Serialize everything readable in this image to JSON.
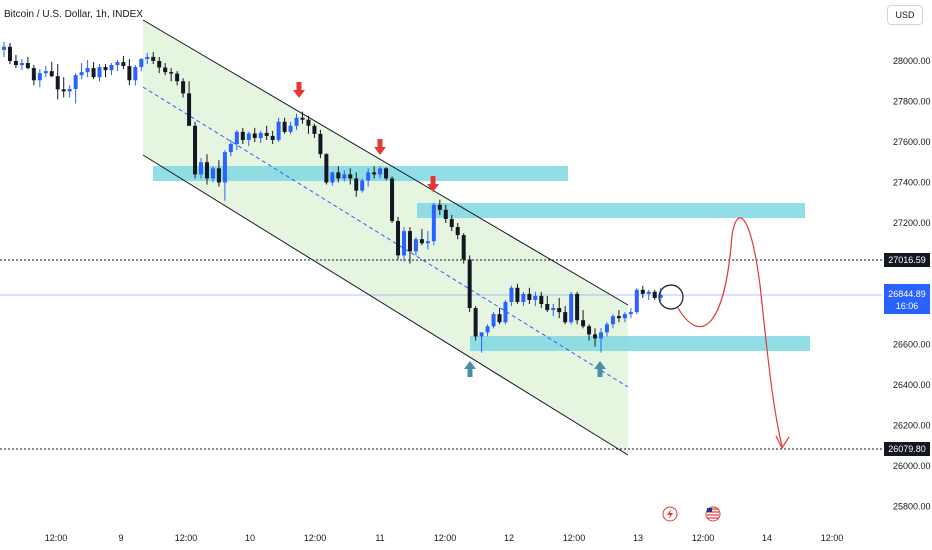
{
  "chart_title": "Bitcoin / U.S. Dollar, 1h, INDEX",
  "currency": "USD",
  "colors": {
    "up": "#2962ff",
    "down": "#131722",
    "channel_fill": "#e6f5e0",
    "zone": "#7fd8e3",
    "arrow_down": "#e53935",
    "arrow_up": "#4a90a4",
    "projection": "#e53935"
  },
  "chart_data": {
    "type": "candlestick",
    "y_ticks": [
      "28000.00",
      "27800.00",
      "27600.00",
      "27400.00",
      "27200.00",
      "27000.00",
      "26800.00",
      "26600.00",
      "26400.00",
      "26200.00",
      "26000.00",
      "25800.00"
    ],
    "x_ticks": [
      "12:00",
      "9",
      "12:00",
      "10",
      "12:00",
      "11",
      "12:00",
      "12",
      "12:00",
      "13",
      "12:00",
      "14",
      "12:00"
    ],
    "price_labels": [
      {
        "id": "level-high",
        "value": "27016.59",
        "style": "dark"
      },
      {
        "id": "current",
        "value": "26844.89",
        "sub": "16:06",
        "style": "blue"
      },
      {
        "id": "level-target",
        "value": "26079.80",
        "style": "dark"
      }
    ],
    "ohlc": [
      [
        28055,
        28095,
        28020,
        28070
      ],
      [
        28070,
        28090,
        27985,
        28000
      ],
      [
        28000,
        28030,
        27965,
        27980
      ],
      [
        27980,
        28010,
        27955,
        27990
      ],
      [
        27990,
        28020,
        27960,
        27965
      ],
      [
        27965,
        27980,
        27880,
        27905
      ],
      [
        27905,
        27960,
        27870,
        27940
      ],
      [
        27940,
        27975,
        27920,
        27950
      ],
      [
        27950,
        27995,
        27920,
        27925
      ],
      [
        27925,
        27985,
        27810,
        27860
      ],
      [
        27860,
        27920,
        27820,
        27850
      ],
      [
        27850,
        27880,
        27820,
        27862
      ],
      [
        27862,
        27940,
        27790,
        27930
      ],
      [
        27930,
        27990,
        27910,
        27945
      ],
      [
        27945,
        28005,
        27920,
        27965
      ],
      [
        27965,
        27995,
        27910,
        27920
      ],
      [
        27920,
        27985,
        27900,
        27970
      ],
      [
        27970,
        27985,
        27920,
        27955
      ],
      [
        27955,
        27990,
        27930,
        27980
      ],
      [
        27980,
        28005,
        27950,
        27995
      ],
      [
        27995,
        28025,
        27960,
        27975
      ],
      [
        27975,
        28010,
        27880,
        27905
      ],
      [
        27905,
        27980,
        27880,
        27970
      ],
      [
        27970,
        28015,
        27950,
        28010
      ],
      [
        28010,
        28040,
        27985,
        28020
      ],
      [
        28020,
        28045,
        27985,
        28000
      ],
      [
        28000,
        28020,
        27940,
        27968
      ],
      [
        27968,
        27990,
        27930,
        27945
      ],
      [
        27945,
        27965,
        27900,
        27938
      ],
      [
        27938,
        27950,
        27880,
        27900
      ],
      [
        27900,
        27915,
        27820,
        27840
      ],
      [
        27840,
        27900,
        27680,
        27680
      ],
      [
        27680,
        27700,
        27420,
        27440
      ],
      [
        27440,
        27520,
        27420,
        27500
      ],
      [
        27500,
        27540,
        27390,
        27420
      ],
      [
        27420,
        27480,
        27400,
        27470
      ],
      [
        27470,
        27510,
        27380,
        27400
      ],
      [
        27400,
        27560,
        27310,
        27550
      ],
      [
        27550,
        27610,
        27530,
        27590
      ],
      [
        27590,
        27660,
        27560,
        27650
      ],
      [
        27650,
        27670,
        27590,
        27610
      ],
      [
        27610,
        27650,
        27580,
        27642
      ],
      [
        27642,
        27670,
        27600,
        27620
      ],
      [
        27620,
        27655,
        27595,
        27645
      ],
      [
        27645,
        27680,
        27610,
        27630
      ],
      [
        27630,
        27655,
        27590,
        27610
      ],
      [
        27610,
        27720,
        27600,
        27700
      ],
      [
        27700,
        27720,
        27640,
        27650
      ],
      [
        27650,
        27700,
        27640,
        27680
      ],
      [
        27680,
        27740,
        27660,
        27720
      ],
      [
        27720,
        27750,
        27690,
        27710
      ],
      [
        27710,
        27730,
        27640,
        27680
      ],
      [
        27680,
        27690,
        27620,
        27640
      ],
      [
        27640,
        27660,
        27520,
        27540
      ],
      [
        27540,
        27545,
        27390,
        27400
      ],
      [
        27400,
        27455,
        27385,
        27450
      ],
      [
        27450,
        27480,
        27400,
        27420
      ],
      [
        27420,
        27460,
        27405,
        27440
      ],
      [
        27440,
        27470,
        27390,
        27420
      ],
      [
        27420,
        27450,
        27330,
        27360
      ],
      [
        27360,
        27420,
        27350,
        27410
      ],
      [
        27410,
        27470,
        27380,
        27450
      ],
      [
        27450,
        27480,
        27420,
        27440
      ],
      [
        27440,
        27480,
        27420,
        27470
      ],
      [
        27470,
        27475,
        27410,
        27420
      ],
      [
        27420,
        27430,
        27200,
        27210
      ],
      [
        27210,
        27230,
        27020,
        27040
      ],
      [
        27040,
        27180,
        27010,
        27160
      ],
      [
        27160,
        27180,
        27000,
        27060
      ],
      [
        27060,
        27130,
        27040,
        27120
      ],
      [
        27120,
        27170,
        27090,
        27100
      ],
      [
        27100,
        27160,
        27070,
        27110
      ],
      [
        27110,
        27300,
        27090,
        27290
      ],
      [
        27290,
        27315,
        27240,
        27265
      ],
      [
        27265,
        27290,
        27200,
        27220
      ],
      [
        27220,
        27240,
        27160,
        27180
      ],
      [
        27180,
        27200,
        27120,
        27140
      ],
      [
        27140,
        27150,
        27000,
        27020
      ],
      [
        27020,
        27040,
        26760,
        26780
      ],
      [
        26780,
        26790,
        26620,
        26640
      ],
      [
        26640,
        26660,
        26560,
        26660
      ],
      [
        26660,
        26700,
        26640,
        26690
      ],
      [
        26690,
        26760,
        26680,
        26750
      ],
      [
        26750,
        26780,
        26700,
        26710
      ],
      [
        26710,
        26820,
        26700,
        26810
      ],
      [
        26810,
        26890,
        26790,
        26880
      ],
      [
        26880,
        26900,
        26800,
        26810
      ],
      [
        26810,
        26860,
        26790,
        26850
      ],
      [
        26850,
        26880,
        26800,
        26820
      ],
      [
        26820,
        26860,
        26790,
        26840
      ],
      [
        26840,
        26860,
        26780,
        26800
      ],
      [
        26800,
        26840,
        26760,
        26770
      ],
      [
        26770,
        26800,
        26740,
        26780
      ],
      [
        26780,
        26830,
        26730,
        26760
      ],
      [
        26760,
        26790,
        26700,
        26710
      ],
      [
        26710,
        26860,
        26700,
        26850
      ],
      [
        26850,
        26860,
        26700,
        26720
      ],
      [
        26720,
        26770,
        26680,
        26690
      ],
      [
        26690,
        26700,
        26620,
        26650
      ],
      [
        26650,
        26680,
        26590,
        26630
      ],
      [
        26630,
        26680,
        26560,
        26660
      ],
      [
        26660,
        26710,
        26640,
        26700
      ],
      [
        26700,
        26750,
        26680,
        26740
      ],
      [
        26740,
        26770,
        26710,
        26730
      ],
      [
        26730,
        26760,
        26710,
        26750
      ],
      [
        26750,
        26780,
        26730,
        26760
      ],
      [
        26760,
        26880,
        26750,
        26870
      ],
      [
        26870,
        26890,
        26830,
        26850
      ],
      [
        26850,
        26870,
        26820,
        26860
      ],
      [
        26860,
        26870,
        26820,
        26830
      ],
      [
        26830,
        26880,
        26815,
        26845
      ]
    ],
    "y_range": [
      25705,
      28250
    ],
    "grid": false
  },
  "icons": [
    "lightning-icon",
    "us-flag-icon"
  ]
}
